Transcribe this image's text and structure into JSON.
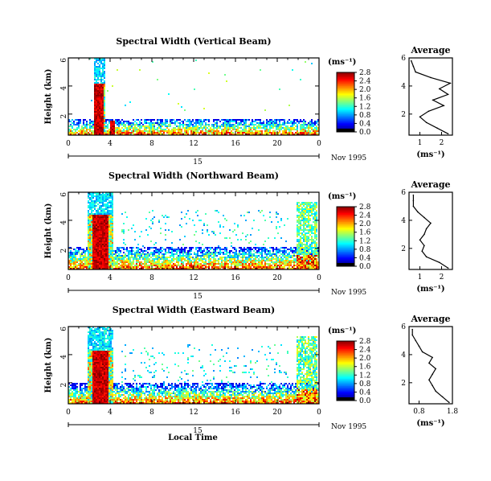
{
  "figure": {
    "xlabel": "Local Time",
    "date_label": "Nov 1995",
    "day_label": "15",
    "colorbar_unit": "(ms⁻¹)",
    "avg_unit": "(ms⁻¹)",
    "avg_title": "Average"
  },
  "chart_data": [
    {
      "type": "heatmap",
      "title": "Spectral Width (Vertical Beam)",
      "ylabel": "Height (km)",
      "xlim": [
        0,
        24
      ],
      "x_ticks": [
        "0",
        "4",
        "8",
        "12",
        "16",
        "20",
        "0"
      ],
      "ylim": [
        0.5,
        6
      ],
      "y_ticks": [
        "2",
        "4",
        "6"
      ],
      "colorbar": {
        "range": [
          0,
          2.8
        ],
        "ticks": [
          "0.0",
          "0.4",
          "0.8",
          "1.2",
          "1.6",
          "2.0",
          "2.4",
          "2.8"
        ]
      },
      "features": {
        "lower_band_top_km": 1.7,
        "upper_gap_km": [
          1.25,
          1.45
        ],
        "tall_column_hours": [
          2.4,
          3.4
        ],
        "tall_column_top_km": 6,
        "high_core_hours": [
          2.4,
          3.3
        ],
        "high_core_top_km": 4.2,
        "second_column_hour": 4.2
      },
      "average": {
        "xlim": [
          0.5,
          2.5
        ],
        "x_ticks": [
          "1",
          "2"
        ],
        "heights_km": [
          0.6,
          1.0,
          1.4,
          1.8,
          2.2,
          2.6,
          3.0,
          3.4,
          3.8,
          4.2,
          4.6,
          5.0,
          5.4,
          5.8
        ],
        "values": [
          2.3,
          1.8,
          1.3,
          1.0,
          1.4,
          2.1,
          1.6,
          2.3,
          1.9,
          2.4,
          1.5,
          0.8,
          0.7,
          0.6
        ]
      }
    },
    {
      "type": "heatmap",
      "title": "Spectral Width (Northward Beam)",
      "ylabel": "Height (km)",
      "xlim": [
        0,
        24
      ],
      "x_ticks": [
        "0",
        "4",
        "8",
        "12",
        "16",
        "20",
        "0"
      ],
      "ylim": [
        0.5,
        6
      ],
      "y_ticks": [
        "2",
        "4",
        "6"
      ],
      "colorbar": {
        "range": [
          0,
          2.8
        ],
        "ticks": [
          "0.0",
          "0.4",
          "0.8",
          "1.2",
          "1.6",
          "2.0",
          "2.4",
          "2.8"
        ]
      },
      "features": {
        "lower_band_top_km": 2.2,
        "tall_column_hours": [
          1.8,
          4.2
        ],
        "tall_column_top_km": 6,
        "high_core_hours": [
          2.3,
          3.8
        ],
        "high_core_top_km": 4.5,
        "late_column_hours": [
          21.8,
          23.8
        ]
      },
      "average": {
        "xlim": [
          0.5,
          2.5
        ],
        "x_ticks": [
          "1",
          "2"
        ],
        "heights_km": [
          0.6,
          1.0,
          1.4,
          1.8,
          2.2,
          2.6,
          3.0,
          3.4,
          3.8,
          4.2,
          4.6,
          5.0,
          5.4,
          5.8
        ],
        "values": [
          2.3,
          1.9,
          1.3,
          1.1,
          1.2,
          1.0,
          1.2,
          1.3,
          1.5,
          1.2,
          0.9,
          0.7,
          0.7,
          0.7
        ]
      }
    },
    {
      "type": "heatmap",
      "title": "Spectral Width (Eastward Beam)",
      "ylabel": "Height (km)",
      "xlim": [
        0,
        24
      ],
      "x_ticks": [
        "0",
        "4",
        "8",
        "12",
        "16",
        "20",
        "0"
      ],
      "ylim": [
        0.5,
        6
      ],
      "y_ticks": [
        "2",
        "4",
        "6"
      ],
      "colorbar": {
        "range": [
          0,
          2.8
        ],
        "ticks": [
          "0.0",
          "0.4",
          "0.8",
          "1.2",
          "1.6",
          "2.0",
          "2.4",
          "2.8"
        ]
      },
      "features": {
        "lower_band_top_km": 2.0,
        "tall_column_hours": [
          1.8,
          4.2
        ],
        "tall_column_top_km": 6,
        "high_core_hours": [
          2.3,
          3.8
        ],
        "high_core_top_km": 4.3,
        "late_column_hours": [
          21.8,
          23.8
        ]
      },
      "average": {
        "xlim": [
          0.5,
          1.8
        ],
        "x_ticks": [
          "0.8",
          "1.8"
        ],
        "heights_km": [
          0.6,
          1.0,
          1.4,
          1.8,
          2.2,
          2.6,
          3.0,
          3.4,
          3.8,
          4.2,
          4.6,
          5.0,
          5.4,
          5.8
        ],
        "values": [
          1.7,
          1.5,
          1.3,
          1.2,
          1.1,
          1.2,
          1.3,
          1.1,
          1.2,
          0.9,
          0.8,
          0.7,
          0.6,
          0.6
        ]
      }
    }
  ]
}
